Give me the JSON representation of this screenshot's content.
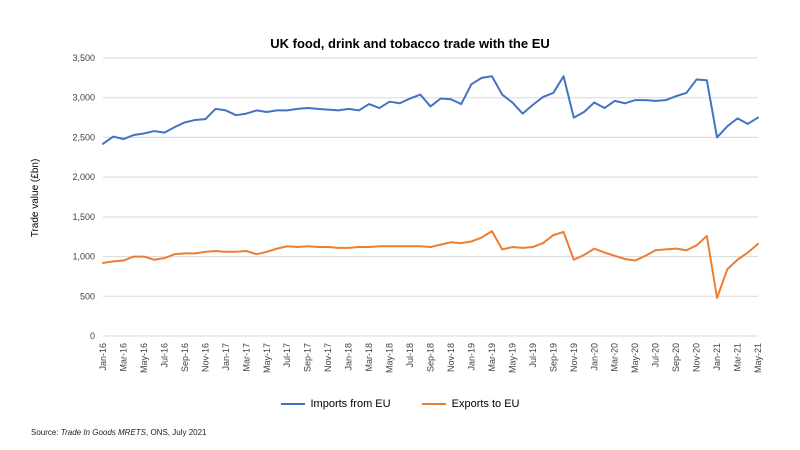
{
  "colors": {
    "imports": "#4472c4",
    "exports": "#ed7d31"
  },
  "source": {
    "prefix": "Source: ",
    "dataset": "Trade In Goods MRETS",
    "rest": ", ONS, July 2021"
  },
  "chart_data": {
    "type": "line",
    "title": "UK food, drink and tobacco trade with the EU",
    "xlabel": "",
    "ylabel": "Trade value (£bn)",
    "ylim": [
      0,
      3500
    ],
    "yticks": [
      0,
      500,
      1000,
      1500,
      2000,
      2500,
      3000,
      3500
    ],
    "ytick_labels": [
      "0",
      "500",
      "1,000",
      "1,500",
      "2,000",
      "2,500",
      "3,000",
      "3,500"
    ],
    "grid": "horizontal",
    "legend_position": "bottom",
    "categories": [
      "Jan-16",
      "Feb-16",
      "Mar-16",
      "Apr-16",
      "May-16",
      "Jun-16",
      "Jul-16",
      "Aug-16",
      "Sep-16",
      "Oct-16",
      "Nov-16",
      "Dec-16",
      "Jan-17",
      "Feb-17",
      "Mar-17",
      "Apr-17",
      "May-17",
      "Jun-17",
      "Jul-17",
      "Aug-17",
      "Sep-17",
      "Oct-17",
      "Nov-17",
      "Dec-17",
      "Jan-18",
      "Feb-18",
      "Mar-18",
      "Apr-18",
      "May-18",
      "Jun-18",
      "Jul-18",
      "Aug-18",
      "Sep-18",
      "Oct-18",
      "Nov-18",
      "Dec-18",
      "Jan-19",
      "Feb-19",
      "Mar-19",
      "Apr-19",
      "May-19",
      "Jun-19",
      "Jul-19",
      "Aug-19",
      "Sep-19",
      "Oct-19",
      "Nov-19",
      "Dec-19",
      "Jan-20",
      "Feb-20",
      "Mar-20",
      "Apr-20",
      "May-20",
      "Jun-20",
      "Jul-20",
      "Aug-20",
      "Sep-20",
      "Oct-20",
      "Nov-20",
      "Dec-20",
      "Jan-21",
      "Feb-21",
      "Mar-21",
      "Apr-21",
      "May-21"
    ],
    "x_tick_labels": [
      "Jan-16",
      "Mar-16",
      "May-16",
      "Jul-16",
      "Sep-16",
      "Nov-16",
      "Jan-17",
      "Mar-17",
      "May-17",
      "Jul-17",
      "Sep-17",
      "Nov-17",
      "Jan-18",
      "Mar-18",
      "May-18",
      "Jul-18",
      "Sep-18",
      "Nov-18",
      "Jan-19",
      "Mar-19",
      "May-19",
      "Jul-19",
      "Sep-19",
      "Nov-19",
      "Jan-20",
      "Mar-20",
      "May-20",
      "Jul-20",
      "Sep-20",
      "Nov-20",
      "Jan-21",
      "Mar-21",
      "May-21"
    ],
    "series": [
      {
        "name": "Imports from EU",
        "color": "#4472c4",
        "values": [
          2420,
          2510,
          2480,
          2530,
          2550,
          2580,
          2560,
          2630,
          2690,
          2720,
          2730,
          2860,
          2840,
          2780,
          2800,
          2840,
          2820,
          2840,
          2840,
          2860,
          2870,
          2860,
          2850,
          2840,
          2860,
          2840,
          2920,
          2870,
          2950,
          2930,
          2990,
          3040,
          2890,
          2990,
          2980,
          2920,
          3170,
          3250,
          3270,
          3040,
          2940,
          2800,
          2910,
          3010,
          3060,
          3270,
          2750,
          2820,
          2940,
          2870,
          2960,
          2930,
          2970,
          2970,
          2960,
          2970,
          3020,
          3060,
          3230,
          3220,
          2500,
          2640,
          2740,
          2670,
          2750
        ]
      },
      {
        "name": "Exports to EU",
        "color": "#ed7d31",
        "values": [
          920,
          940,
          950,
          1000,
          1000,
          960,
          980,
          1030,
          1040,
          1040,
          1060,
          1070,
          1060,
          1060,
          1070,
          1030,
          1060,
          1100,
          1130,
          1120,
          1130,
          1120,
          1120,
          1110,
          1110,
          1120,
          1120,
          1130,
          1130,
          1130,
          1130,
          1130,
          1120,
          1150,
          1180,
          1170,
          1190,
          1240,
          1320,
          1090,
          1120,
          1110,
          1120,
          1170,
          1270,
          1310,
          960,
          1020,
          1100,
          1050,
          1010,
          970,
          950,
          1010,
          1080,
          1090,
          1100,
          1080,
          1140,
          1260,
          480,
          840,
          960,
          1050,
          1160
        ]
      }
    ]
  }
}
